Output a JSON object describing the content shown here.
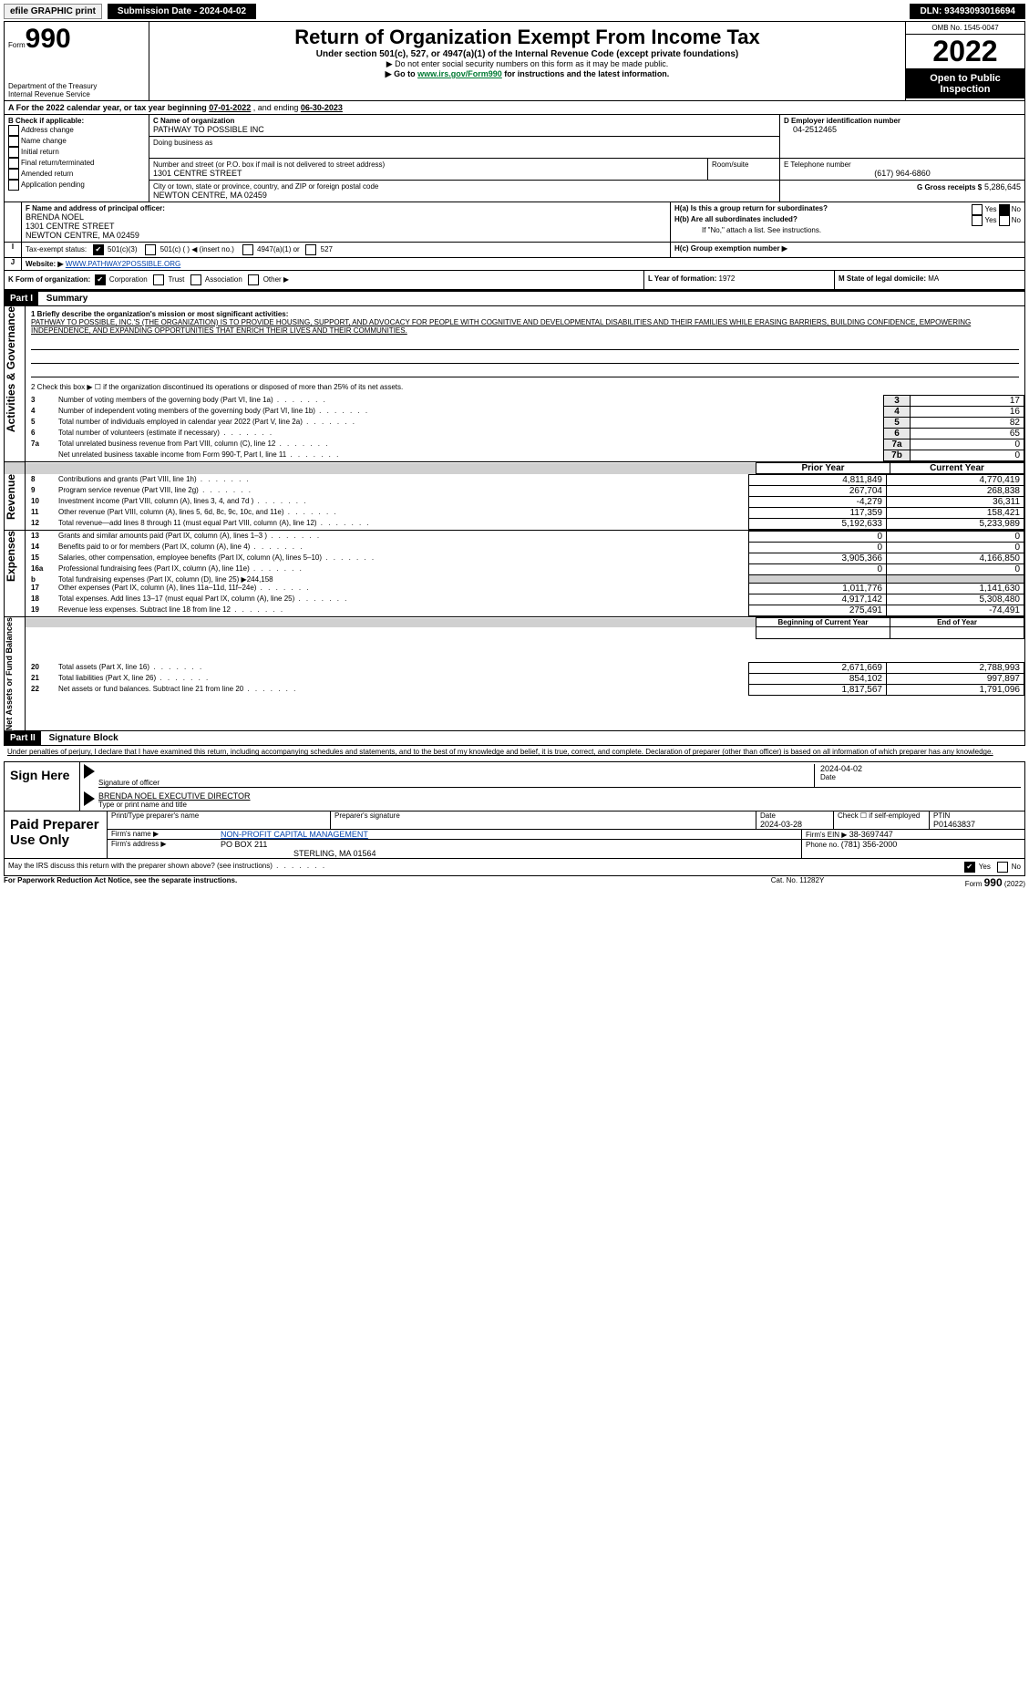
{
  "topbar": {
    "efile": "efile GRAPHIC print",
    "submission_label": "Submission Date - 2024-04-02",
    "dln_label": "DLN: 93493093016694"
  },
  "header": {
    "form_no_prefix": "Form",
    "form_no": "990",
    "dept": "Department of the Treasury",
    "irs": "Internal Revenue Service",
    "title": "Return of Organization Exempt From Income Tax",
    "subtitle": "Under section 501(c), 527, or 4947(a)(1) of the Internal Revenue Code (except private foundations)",
    "ssn_note": "▶ Do not enter social security numbers on this form as it may be made public.",
    "goto": "▶ Go to www.irs.gov/Form990 for instructions and the latest information.",
    "goto_pre": "▶ Go to ",
    "goto_link": "www.irs.gov/Form990",
    "goto_post": " for instructions and the latest information.",
    "omb": "OMB No. 1545-0047",
    "year": "2022",
    "open": "Open to Public Inspection"
  },
  "A": {
    "prefix": "A For the 2022 calendar year, or tax year beginning ",
    "begin": "07-01-2022",
    "mid": "  , and ending ",
    "end": "06-30-2023"
  },
  "B": {
    "label": "B Check if applicable:",
    "items": [
      "Address change",
      "Name change",
      "Initial return",
      "Final return/terminated",
      "Amended return",
      "Application pending"
    ]
  },
  "C": {
    "label": "C Name of organization",
    "name": "PATHWAY TO POSSIBLE INC",
    "dba_label": "Doing business as",
    "street_label": "Number and street (or P.O. box if mail is not delivered to street address)",
    "room_label": "Room/suite",
    "street": "1301 CENTRE STREET",
    "city_label": "City or town, state or province, country, and ZIP or foreign postal code",
    "city": "NEWTON CENTRE, MA  02459"
  },
  "D": {
    "label": "D Employer identification number",
    "ein": "04-2512465"
  },
  "E": {
    "label": "E Telephone number",
    "phone": "(617) 964-6860"
  },
  "G": {
    "label": "G Gross receipts $",
    "val": "5,286,645"
  },
  "F": {
    "label": "F Name and address of principal officer:",
    "name": "BRENDA NOEL",
    "street": "1301 CENTRE STREET",
    "city": "NEWTON CENTRE, MA  02459"
  },
  "H": {
    "a": "H(a)  Is this a group return for subordinates?",
    "b": "H(b)  Are all subordinates included?",
    "b_note": "If \"No,\" attach a list. See instructions.",
    "c": "H(c)  Group exemption number ▶",
    "yes": "Yes",
    "no": "No"
  },
  "I": {
    "label": "Tax-exempt status:",
    "opts": [
      "501(c)(3)",
      "501(c) (  ) ◀ (insert no.)",
      "4947(a)(1) or",
      "527"
    ]
  },
  "J": {
    "label": "Website: ▶",
    "url": " WWW.PATHWAY2POSSIBLE.ORG"
  },
  "K": {
    "label": "K Form of organization:",
    "opts": [
      "Corporation",
      "Trust",
      "Association",
      "Other ▶"
    ]
  },
  "L": {
    "label": "L Year of formation: ",
    "val": "1972"
  },
  "M": {
    "label": "M State of legal domicile: ",
    "val": "MA"
  },
  "part1": {
    "title": "Part I",
    "name": "Summary",
    "l1": "1 Briefly describe the organization's mission or most significant activities:",
    "mission": "PATHWAY TO POSSIBLE, INC.'S (THE ORGANIZATION) IS TO PROVIDE HOUSING, SUPPORT, AND ADVOCACY FOR PEOPLE WITH COGNITIVE AND DEVELOPMENTAL DISABILITIES AND THEIR FAMILIES WHILE ERASING BARRIERS, BUILDING CONFIDENCE, EMPOWERING INDEPENDENCE, AND EXPANDING OPPORTUNITIES THAT ENRICH THEIR LIVES AND THEIR COMMUNITIES.",
    "l2": "2  Check this box ▶ ☐  if the organization discontinued its operations or disposed of more than 25% of its net assets.",
    "rows_gov": [
      {
        "n": "3",
        "t": "Number of voting members of the governing body (Part VI, line 1a)",
        "b": "3",
        "v": "17"
      },
      {
        "n": "4",
        "t": "Number of independent voting members of the governing body (Part VI, line 1b)",
        "b": "4",
        "v": "16"
      },
      {
        "n": "5",
        "t": "Total number of individuals employed in calendar year 2022 (Part V, line 2a)",
        "b": "5",
        "v": "82"
      },
      {
        "n": "6",
        "t": "Total number of volunteers (estimate if necessary)",
        "b": "6",
        "v": "65"
      },
      {
        "n": "7a",
        "t": "Total unrelated business revenue from Part VIII, column (C), line 12",
        "b": "7a",
        "v": "0"
      },
      {
        "n": "",
        "t": "Net unrelated business taxable income from Form 990-T, Part I, line 11",
        "b": "7b",
        "v": "0"
      }
    ],
    "hdr_prior": "Prior Year",
    "hdr_curr": "Current Year",
    "rows_rev": [
      {
        "n": "8",
        "t": "Contributions and grants (Part VIII, line 1h)",
        "p": "4,811,849",
        "c": "4,770,419"
      },
      {
        "n": "9",
        "t": "Program service revenue (Part VIII, line 2g)",
        "p": "267,704",
        "c": "268,838"
      },
      {
        "n": "10",
        "t": "Investment income (Part VIII, column (A), lines 3, 4, and 7d )",
        "p": "-4,279",
        "c": "36,311"
      },
      {
        "n": "11",
        "t": "Other revenue (Part VIII, column (A), lines 5, 6d, 8c, 9c, 10c, and 11e)",
        "p": "117,359",
        "c": "158,421"
      },
      {
        "n": "12",
        "t": "Total revenue—add lines 8 through 11 (must equal Part VIII, column (A), line 12)",
        "p": "5,192,633",
        "c": "5,233,989"
      }
    ],
    "rows_exp": [
      {
        "n": "13",
        "t": "Grants and similar amounts paid (Part IX, column (A), lines 1–3 )",
        "p": "0",
        "c": "0"
      },
      {
        "n": "14",
        "t": "Benefits paid to or for members (Part IX, column (A), line 4)",
        "p": "0",
        "c": "0"
      },
      {
        "n": "15",
        "t": "Salaries, other compensation, employee benefits (Part IX, column (A), lines 5–10)",
        "p": "3,905,366",
        "c": "4,166,850"
      },
      {
        "n": "16a",
        "t": "Professional fundraising fees (Part IX, column (A), line 11e)",
        "p": "0",
        "c": "0"
      },
      {
        "n": "b",
        "t": "Total fundraising expenses (Part IX, column (D), line 25) ▶244,158",
        "p": "",
        "c": ""
      },
      {
        "n": "17",
        "t": "Other expenses (Part IX, column (A), lines 11a–11d, 11f–24e)",
        "p": "1,011,776",
        "c": "1,141,630"
      },
      {
        "n": "18",
        "t": "Total expenses. Add lines 13–17 (must equal Part IX, column (A), line 25)",
        "p": "4,917,142",
        "c": "5,308,480"
      },
      {
        "n": "19",
        "t": "Revenue less expenses. Subtract line 18 from line 12",
        "p": "275,491",
        "c": "-74,491"
      }
    ],
    "hdr_boy": "Beginning of Current Year",
    "hdr_eoy": "End of Year",
    "rows_net": [
      {
        "n": "20",
        "t": "Total assets (Part X, line 16)",
        "p": "2,671,669",
        "c": "2,788,993"
      },
      {
        "n": "21",
        "t": "Total liabilities (Part X, line 26)",
        "p": "854,102",
        "c": "997,897"
      },
      {
        "n": "22",
        "t": "Net assets or fund balances. Subtract line 21 from line 20",
        "p": "1,817,567",
        "c": "1,791,096"
      }
    ],
    "side_gov": "Activities & Governance",
    "side_rev": "Revenue",
    "side_exp": "Expenses",
    "side_net": "Net Assets or Fund Balances"
  },
  "part2": {
    "title": "Part II",
    "name": "Signature Block",
    "penalties": "Under penalties of perjury, I declare that I have examined this return, including accompanying schedules and statements, and to the best of my knowledge and belief, it is true, correct, and complete. Declaration of preparer (other than officer) is based on all information of which preparer has any knowledge."
  },
  "sign": {
    "here": "Sign Here",
    "sig_label": "Signature of officer",
    "date_label": "Date",
    "date": "2024-04-02",
    "name": "BRENDA NOEL  EXECUTIVE DIRECTOR",
    "name_label": "Type or print name and title"
  },
  "paid": {
    "title": "Paid Preparer Use Only",
    "hdrs": [
      "Print/Type preparer's name",
      "Preparer's signature",
      "Date",
      "Check ☐ if self-employed",
      "PTIN"
    ],
    "date": "2024-03-28",
    "ptin": "P01463837",
    "firm_name_label": "Firm's name    ▶",
    "firm_name": "NON-PROFIT CAPITAL MANAGEMENT",
    "firm_ein_label": "Firm's EIN ▶",
    "firm_ein": "38-3697447",
    "firm_addr_label": "Firm's address ▶",
    "firm_addr1": "PO BOX 211",
    "firm_addr2": "STERLING, MA  01564",
    "phone_label": "Phone no.",
    "phone": "(781) 356-2000"
  },
  "footer": {
    "q": "May the IRS discuss this return with the preparer shown above? (see instructions)",
    "yes": "Yes",
    "no": "No",
    "pra": "For Paperwork Reduction Act Notice, see the separate instructions.",
    "cat": "Cat. No. 11282Y",
    "form": "Form 990 (2022)"
  }
}
